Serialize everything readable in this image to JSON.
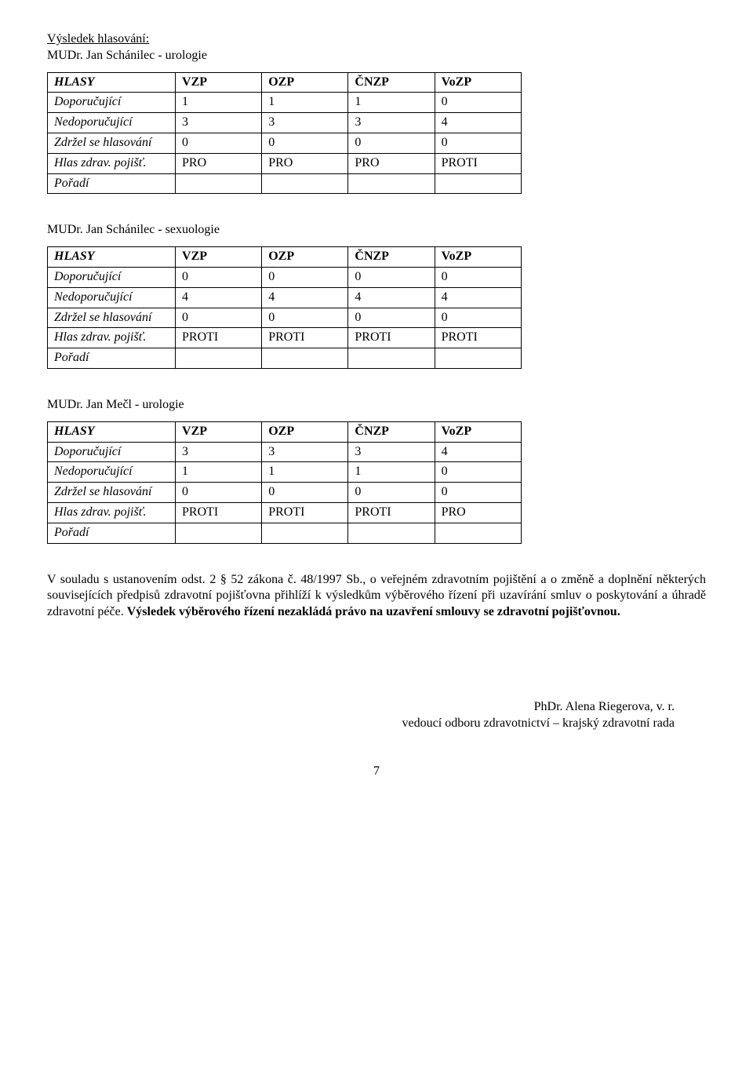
{
  "heading_result": "Výsledek hlasování:",
  "col_headers": [
    "HLASY",
    "VZP",
    "OZP",
    "ČNZP",
    "VoZP"
  ],
  "row_labels": {
    "doporucujici": "Doporučující",
    "nedoporucujici": "Nedoporučující",
    "zdrzel": "Zdržel se hlasování",
    "hlas": "Hlas zdrav. pojišť.",
    "poradi": "Pořadí"
  },
  "tables": [
    {
      "title": "MUDr. Jan Schánilec - urologie",
      "doporucujici": [
        "1",
        "1",
        "1",
        "0"
      ],
      "nedoporucujici": [
        "3",
        "3",
        "3",
        "4"
      ],
      "zdrzel": [
        "0",
        "0",
        "0",
        "0"
      ],
      "hlas": [
        "PRO",
        "PRO",
        "PRO",
        "PROTI"
      ],
      "poradi": [
        "",
        "",
        "",
        ""
      ]
    },
    {
      "title": "MUDr. Jan Schánilec - sexuologie",
      "doporucujici": [
        "0",
        "0",
        "0",
        "0"
      ],
      "nedoporucujici": [
        "4",
        "4",
        "4",
        "4"
      ],
      "zdrzel": [
        "0",
        "0",
        "0",
        "0"
      ],
      "hlas": [
        "PROTI",
        "PROTI",
        "PROTI",
        "PROTI"
      ],
      "poradi": [
        "",
        "",
        "",
        ""
      ]
    },
    {
      "title": "MUDr. Jan Mečl - urologie",
      "doporucujici": [
        "3",
        "3",
        "3",
        "4"
      ],
      "nedoporucujici": [
        "1",
        "1",
        "1",
        "0"
      ],
      "zdrzel": [
        "0",
        "0",
        "0",
        "0"
      ],
      "hlas": [
        "PROTI",
        "PROTI",
        "PROTI",
        "PRO"
      ],
      "poradi": [
        "",
        "",
        "",
        ""
      ]
    }
  ],
  "paragraph_plain": "V souladu s ustanovením odst. 2 § 52 zákona č. 48/1997 Sb., o veřejném zdravotním pojištění a o změně a doplnění některých souvisejících předpisů zdravotní pojišťovna přihlíží k výsledkům výběrového řízení při uzavírání smluv o poskytování a úhradě zdravotní péče. ",
  "paragraph_bold": "Výsledek výběrového řízení nezakládá právo na uzavření smlouvy se zdravotní pojišťovnou.",
  "signature": {
    "name": "PhDr. Alena Riegerova, v. r.",
    "role": "vedoucí odboru zdravotnictví – krajský zdravotní rada"
  },
  "page_number": "7"
}
